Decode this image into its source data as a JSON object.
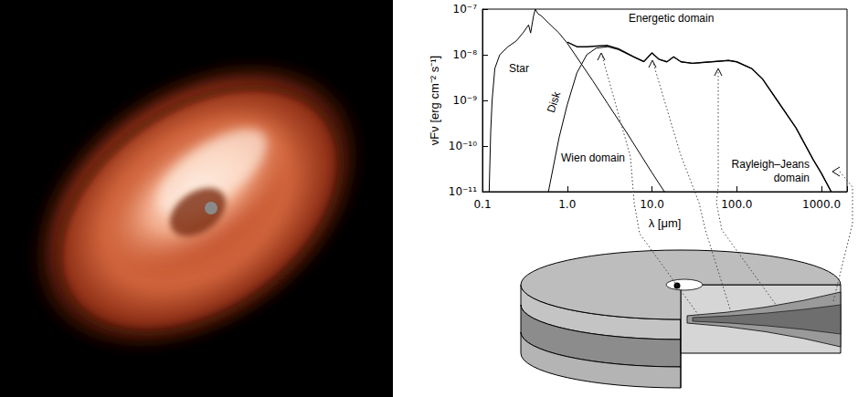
{
  "chart_data": {
    "type": "line",
    "x_label": "λ [μm]",
    "y_label": "νFν [erg cm⁻² s⁻¹]",
    "log": true,
    "grid": false,
    "xlim": [
      0.1,
      2000
    ],
    "ylim": [
      1e-11,
      1e-07
    ],
    "xticks": [
      0.1,
      {
        "value": 1,
        "label": "1.0"
      },
      {
        "value": 10,
        "label": "10.0"
      },
      {
        "value": 100,
        "label": "100.0"
      },
      {
        "value": 1000,
        "label": "1000.0"
      }
    ],
    "yticks": [
      {
        "value": 1e-11,
        "label": "10⁻¹¹"
      },
      {
        "value": 1e-10,
        "label": "10⁻¹⁰"
      },
      {
        "value": 1e-09,
        "label": "10⁻⁹"
      },
      {
        "value": 1e-08,
        "label": "10⁻⁸"
      },
      {
        "value": 1e-07,
        "label": "10⁻⁷"
      }
    ],
    "annotations": [
      "Energetic domain",
      "Wien domain",
      "Rayleigh–Jeans domain"
    ],
    "series": [
      {
        "name": "Star",
        "color": "#000000",
        "x": [
          0.12,
          0.125,
          0.13,
          0.14,
          0.16,
          0.2,
          0.25,
          0.3,
          0.35,
          0.37,
          0.4,
          0.42,
          0.45,
          0.5,
          0.6,
          0.8,
          1.0,
          2,
          3,
          5,
          10,
          14
        ],
        "values": [
          1e-11,
          2e-10,
          1e-09,
          5e-09,
          1e-08,
          1.5e-08,
          2e-08,
          3e-08,
          4.5e-08,
          3e-08,
          7e-08,
          1e-07,
          8e-08,
          7e-08,
          5e-08,
          3e-08,
          1.8e-08,
          2.7e-09,
          8.5e-10,
          2e-10,
          2.6e-11,
          1e-11
        ]
      },
      {
        "name": "Disk",
        "color": "#000000",
        "x": [
          0.6,
          0.8,
          1.0,
          1.3,
          1.7,
          2.2,
          3,
          4,
          6,
          8,
          10,
          12,
          15,
          18,
          22,
          30,
          50,
          80,
          100,
          150,
          200,
          300,
          500,
          800,
          1000,
          1300
        ],
        "values": [
          1e-11,
          1.5e-10,
          8e-10,
          4e-09,
          1e-08,
          1.4e-08,
          1.5e-08,
          1.3e-08,
          9e-09,
          7e-09,
          1.1e-08,
          8e-09,
          7e-09,
          9e-09,
          7e-09,
          6.5e-09,
          7e-09,
          7.5e-09,
          7e-09,
          5e-09,
          3e-09,
          1e-09,
          2.5e-10,
          5e-11,
          2.5e-11,
          1e-11
        ]
      },
      {
        "color": "#000000",
        "x": [
          1.0,
          1.3,
          1.7,
          2.2,
          3,
          4,
          6,
          8,
          10,
          12,
          15,
          18,
          22,
          30,
          50,
          80,
          100,
          150,
          200,
          300,
          500,
          800,
          1000,
          1300
        ],
        "values": [
          1.9e-08,
          1.5e-08,
          1.5e-08,
          1.55e-08,
          1.6e-08,
          1.35e-08,
          9.2e-09,
          7.1e-09,
          1.1e-08,
          8e-09,
          7e-09,
          9e-09,
          7e-09,
          6.5e-09,
          7e-09,
          7.5e-09,
          7e-09,
          5e-09,
          3e-09,
          1e-09,
          2.5e-10,
          5e-11,
          2.5e-11,
          1e-11
        ]
      }
    ]
  }
}
